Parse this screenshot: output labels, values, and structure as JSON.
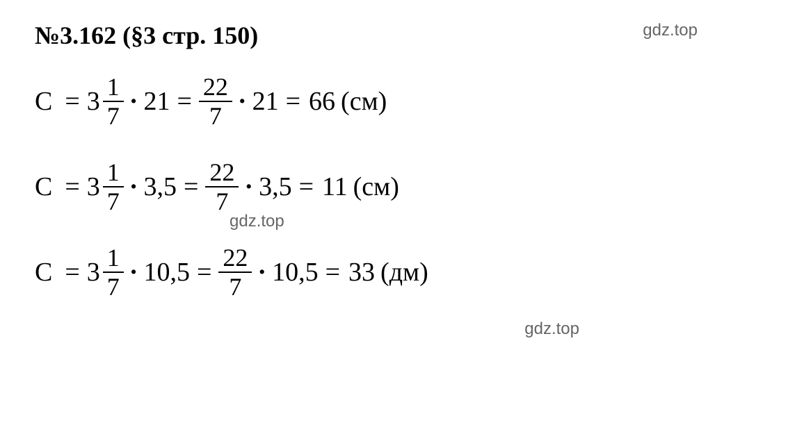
{
  "heading": "№3.162 (§3 стр. 150)",
  "watermark": "gdz.top",
  "equations": [
    {
      "variable": "C",
      "mixed_whole": "3",
      "mixed_num": "1",
      "mixed_den": "7",
      "multiplier": "21",
      "improper_num": "22",
      "improper_den": "7",
      "multiplier2": "21",
      "result": "66",
      "unit": "(см)"
    },
    {
      "variable": "C",
      "mixed_whole": "3",
      "mixed_num": "1",
      "mixed_den": "7",
      "multiplier": "3,5",
      "improper_num": "22",
      "improper_den": "7",
      "multiplier2": "3,5",
      "result": "11",
      "unit": "(см)"
    },
    {
      "variable": "C",
      "mixed_whole": "3",
      "mixed_num": "1",
      "mixed_den": "7",
      "multiplier": "10,5",
      "improper_num": "22",
      "improper_den": "7",
      "multiplier2": "10,5",
      "result": "33",
      "unit": "(дм)"
    }
  ],
  "colors": {
    "background": "#ffffff",
    "text": "#000000",
    "watermark": "#666666"
  },
  "typography": {
    "heading_fontsize": 36,
    "equation_fontsize": 38,
    "fraction_fontsize": 36,
    "watermark_fontsize": 24,
    "font_family": "Times New Roman"
  }
}
